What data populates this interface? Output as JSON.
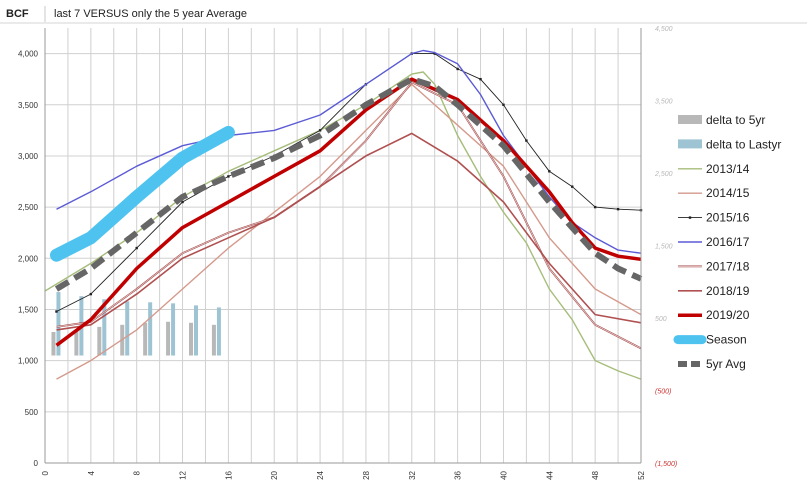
{
  "header": {
    "units_label": "BCF",
    "title": "last 7 VERSUS only the 5 year Average"
  },
  "chart_data": {
    "type": "line",
    "title": "last 7 VERSUS only the 5 year Average",
    "ylabel": "BCF",
    "xlabel": "",
    "xlim": [
      0,
      52
    ],
    "ylim": [
      0,
      4250
    ],
    "x_ticks": [
      0,
      4,
      8,
      12,
      16,
      20,
      24,
      28,
      32,
      36,
      40,
      44,
      48,
      52
    ],
    "y_ticks": [
      0,
      500,
      1000,
      1500,
      2000,
      2500,
      3000,
      3500,
      4000
    ],
    "y_tick_labels": [
      "0",
      "500",
      "1,000",
      "1,500",
      "2,000",
      "2,500",
      "3,000",
      "3,500",
      "4,000"
    ],
    "secondary_axis": {
      "ticks": [
        -1500,
        -500,
        500,
        1500,
        2500,
        3500,
        4500
      ],
      "tick_labels": [
        "(1,500)",
        "(500)",
        "500",
        "1,500",
        "2,500",
        "3,500",
        "4,500"
      ],
      "range": [
        -1500,
        4500
      ]
    },
    "bar_series": [
      {
        "name": "delta to 5yr",
        "x": [
          1,
          3,
          5,
          7,
          9,
          11,
          13,
          15
        ],
        "values": [
          1280,
          1300,
          1330,
          1350,
          1370,
          1380,
          1370,
          1350
        ]
      },
      {
        "name": "delta to Lastyr",
        "x": [
          1,
          3,
          5,
          7,
          9,
          11,
          13,
          15
        ],
        "values": [
          1670,
          1630,
          1600,
          1580,
          1570,
          1560,
          1540,
          1520
        ]
      }
    ],
    "series": [
      {
        "name": "2013/14",
        "x": [
          0,
          4,
          8,
          12,
          16,
          20,
          24,
          28,
          32,
          33,
          34,
          36,
          38,
          40,
          42,
          44,
          46,
          48,
          50,
          52
        ],
        "values": [
          1680,
          1950,
          2250,
          2600,
          2850,
          3050,
          3250,
          3500,
          3800,
          3820,
          3700,
          3200,
          2800,
          2450,
          2150,
          1700,
          1400,
          1000,
          900,
          820
        ]
      },
      {
        "name": "2014/15",
        "x": [
          1,
          4,
          8,
          12,
          16,
          20,
          24,
          28,
          32,
          33,
          36,
          40,
          44,
          48,
          52
        ],
        "values": [
          820,
          1000,
          1300,
          1700,
          2100,
          2450,
          2800,
          3250,
          3700,
          3600,
          3300,
          2900,
          2200,
          1700,
          1450
        ]
      },
      {
        "name": "2015/16",
        "x": [
          1,
          4,
          8,
          12,
          16,
          20,
          24,
          28,
          32,
          34,
          36,
          38,
          40,
          42,
          44,
          46,
          48,
          50,
          52
        ],
        "values": [
          1480,
          1650,
          2100,
          2550,
          2800,
          3000,
          3250,
          3700,
          4000,
          4000,
          3850,
          3750,
          3500,
          3150,
          2850,
          2700,
          2500,
          2480,
          2470
        ]
      },
      {
        "name": "2016/17",
        "x": [
          1,
          4,
          8,
          12,
          16,
          20,
          24,
          28,
          32,
          33,
          34,
          36,
          38,
          40,
          42,
          44,
          46,
          48,
          50,
          52
        ],
        "values": [
          2480,
          2650,
          2900,
          3100,
          3200,
          3250,
          3400,
          3700,
          4000,
          4030,
          4010,
          3900,
          3600,
          3200,
          2900,
          2600,
          2350,
          2200,
          2080,
          2050
        ]
      },
      {
        "name": "2017/18",
        "x": [
          1,
          4,
          8,
          12,
          16,
          20,
          24,
          28,
          32,
          36,
          40,
          44,
          48,
          52
        ],
        "values": [
          1330,
          1380,
          1700,
          2050,
          2250,
          2400,
          2700,
          3150,
          3720,
          3500,
          2800,
          1900,
          1350,
          1120
        ]
      },
      {
        "name": "2018/19",
        "x": [
          1,
          4,
          8,
          12,
          16,
          20,
          24,
          28,
          32,
          36,
          40,
          44,
          48,
          52
        ],
        "values": [
          1300,
          1350,
          1650,
          2000,
          2200,
          2400,
          2700,
          3000,
          3220,
          2950,
          2550,
          1950,
          1450,
          1370
        ]
      },
      {
        "name": "2019/20",
        "x": [
          1,
          4,
          8,
          12,
          16,
          20,
          24,
          28,
          32,
          34,
          36,
          40,
          44,
          46,
          48,
          50,
          52
        ],
        "values": [
          1150,
          1400,
          1900,
          2300,
          2550,
          2800,
          3050,
          3450,
          3750,
          3650,
          3550,
          3150,
          2650,
          2350,
          2100,
          2020,
          1990
        ]
      },
      {
        "name": "Season",
        "x": [
          1,
          4,
          8,
          12,
          16
        ],
        "values": [
          2030,
          2200,
          2600,
          2980,
          3230
        ]
      },
      {
        "name": "5yr Avg",
        "x": [
          1,
          4,
          8,
          12,
          16,
          20,
          24,
          28,
          32,
          34,
          36,
          40,
          44,
          46,
          48,
          50,
          52
        ],
        "values": [
          1700,
          1900,
          2250,
          2600,
          2800,
          2980,
          3200,
          3500,
          3750,
          3680,
          3500,
          3100,
          2550,
          2300,
          2050,
          1900,
          1800
        ]
      }
    ],
    "legend": {
      "placement": "right",
      "entries": [
        "delta to 5yr",
        "delta to Lastyr",
        "2013/14",
        "2014/15",
        "2015/16",
        "2016/17",
        "2017/18",
        "2018/19",
        "2019/20",
        "Season",
        "5yr Avg"
      ]
    },
    "colors": {
      "delta to 5yr": "#b8b8b8",
      "delta to Lastyr": "#9ec3d3",
      "2013/14": "#a6bd7a",
      "2014/15": "#d49a8c",
      "2015/16": "#222222",
      "2016/17": "#5b5bd6",
      "2017/18": "#a04545",
      "2018/19": "#b05050",
      "2019/20": "#c00000",
      "Season": "#4fc3f0",
      "5yr Avg": "#666666",
      "grid": "#d0d0d0",
      "axis_text": "#333333",
      "secondary_text": "#cc3333"
    }
  }
}
